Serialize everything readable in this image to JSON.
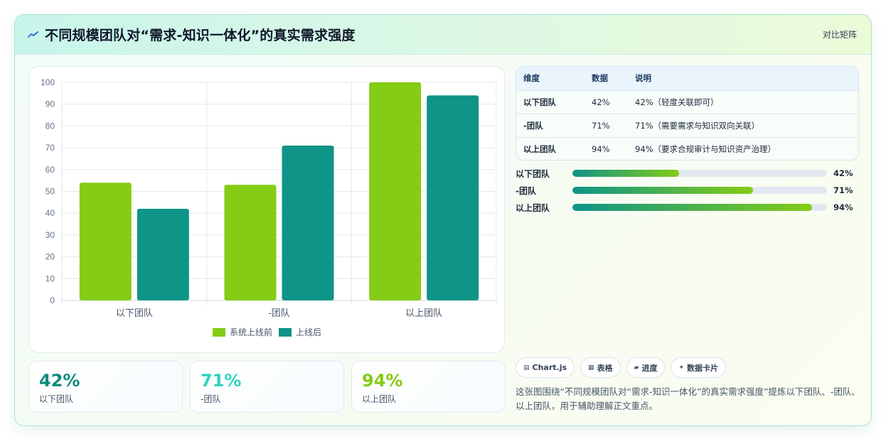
{
  "header": {
    "title": "不同规模团队对“需求-知识一体化”的真实需求强度",
    "tag": "对比矩阵"
  },
  "colors": {
    "series_before": "#84cc16",
    "series_after": "#0f9488",
    "stat_1": "#0f8a7e",
    "stat_2": "#2dd4bf",
    "stat_3": "#84cc16"
  },
  "chart_data": {
    "type": "bar",
    "categories": [
      "以下团队",
      "-团队",
      "以上团队"
    ],
    "series": [
      {
        "name": "系统上线前",
        "values": [
          54,
          53,
          100
        ]
      },
      {
        "name": "上线后",
        "values": [
          42,
          71,
          94
        ]
      }
    ],
    "ylim": [
      0,
      100
    ],
    "yticks": [
      0,
      10,
      20,
      30,
      40,
      50,
      60,
      70,
      80,
      90,
      100
    ],
    "grid": true,
    "legend": "bottom"
  },
  "stats": [
    {
      "value": "42%",
      "label": "以下团队"
    },
    {
      "value": "71%",
      "label": "-团队"
    },
    {
      "value": "94%",
      "label": "以上团队"
    }
  ],
  "table": {
    "headers": [
      "维度",
      "数据",
      "说明"
    ],
    "rows": [
      [
        "以下团队",
        "42%",
        "42%（轻度关联即可）"
      ],
      [
        "-团队",
        "71%",
        "71%（需要需求与知识双向关联）"
      ],
      [
        "以上团队",
        "94%",
        "94%（要求合规审计与知识资产治理）"
      ]
    ]
  },
  "progress": [
    {
      "label": "以下团队",
      "value": "42%",
      "fraction": 0.42
    },
    {
      "label": "-团队",
      "value": "71%",
      "fraction": 0.71
    },
    {
      "label": "以上团队",
      "value": "94%",
      "fraction": 0.94
    }
  ],
  "chips": [
    {
      "icon": "▤",
      "label": "Chart.js"
    },
    {
      "icon": "▦",
      "label": "表格"
    },
    {
      "icon": "▰",
      "label": "进度"
    },
    {
      "icon": "✦",
      "label": "数据卡片"
    }
  ],
  "description": "这张图围绕“不同规模团队对“需求-知识一体化”的真实需求强度”提炼以下团队、-团队、以上团队，用于辅助理解正文重点。"
}
